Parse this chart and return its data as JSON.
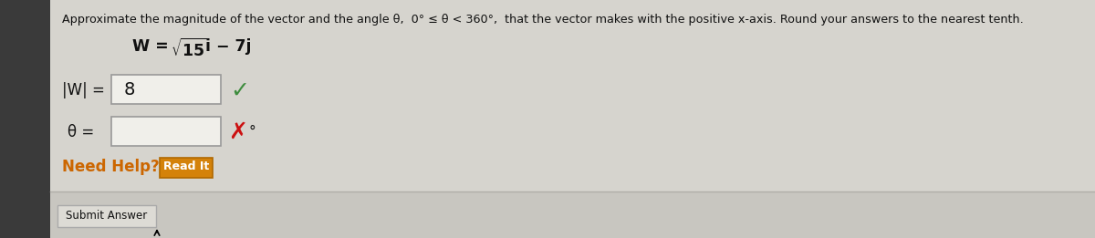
{
  "bg_main": "#cbcac4",
  "bg_left_bar": "#3a3a3a",
  "bg_content": "#d6d4ce",
  "bg_panel": "#e2e0da",
  "bg_bottom": "#c8c6c0",
  "instruction_text": "Approximate the magnitude of the vector and the angle θ,  0° ≤ θ < 360°,  that the vector makes with the positive x-axis. Round your answers to the nearest tenth.",
  "mag_value": "8",
  "degree_symbol": "°",
  "need_help_text": "Need Help?",
  "read_it_text": "Read It",
  "submit_text": "Submit Answer",
  "orange_btn_color": "#d4820a",
  "orange_btn_border": "#b06800",
  "submit_btn_color": "#dddbd5",
  "submit_btn_border": "#aaaaaa",
  "check_color": "#3d8c3d",
  "cross_color": "#cc1111",
  "need_help_color": "#cc6600",
  "text_color": "#111111",
  "input_bg": "#f0efea",
  "input_border": "#999999",
  "top_btn_color": "#c5c3bd",
  "top_btn_border": "#aaaaaa",
  "line_color": "#b0aea8",
  "panel_border": "#bbb9b3"
}
